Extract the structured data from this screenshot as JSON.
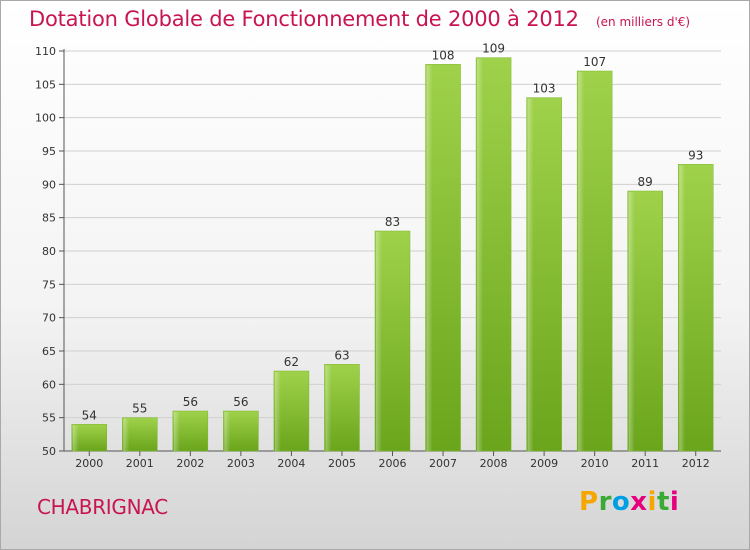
{
  "chart_data": {
    "type": "bar",
    "title": "Dotation Globale de Fonctionnement de 2000 à 2012",
    "subtitle": "(en milliers d'€)",
    "categories": [
      "2000",
      "2001",
      "2002",
      "2003",
      "2004",
      "2005",
      "2006",
      "2007",
      "2008",
      "2009",
      "2010",
      "2011",
      "2012"
    ],
    "values": [
      54,
      55,
      56,
      56,
      62,
      63,
      83,
      108,
      109,
      103,
      107,
      89,
      93
    ],
    "ylim": [
      50,
      110
    ],
    "yticks": [
      50,
      55,
      60,
      65,
      70,
      75,
      80,
      85,
      90,
      95,
      100,
      105,
      110
    ],
    "xlabel": "",
    "ylabel": "",
    "grid": true,
    "bar_color": "#8cc63f"
  },
  "commune": "CHABRIGNAC",
  "logo": {
    "letters": [
      "P",
      "r",
      "o",
      "x",
      "i",
      "t",
      "i"
    ],
    "colors": [
      "#f7a600",
      "#3aaa35",
      "#009fe3",
      "#e6007e",
      "#f7a600",
      "#3aaa35",
      "#e6007e"
    ]
  }
}
